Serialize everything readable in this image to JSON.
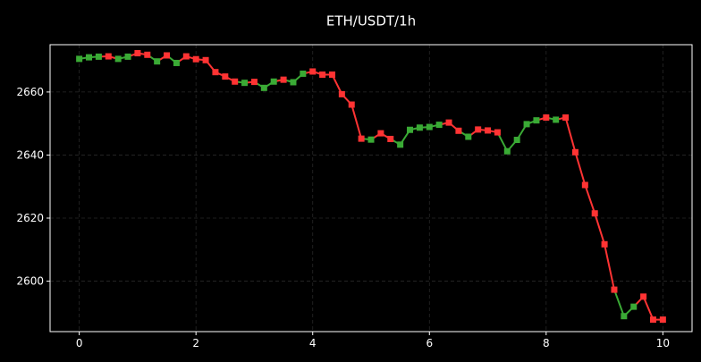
{
  "chart_data": {
    "type": "line",
    "title": "ETH/USDT/1h",
    "xlabel": "",
    "ylabel": "",
    "xlim": [
      -0.5,
      10.5
    ],
    "ylim": [
      2584,
      2675
    ],
    "x_ticks": [
      0,
      2,
      4,
      6,
      8,
      10
    ],
    "x_tick_labels": [
      "0",
      "2",
      "4",
      "6",
      "8",
      "10"
    ],
    "y_ticks": [
      2600,
      2620,
      2640,
      2660
    ],
    "y_tick_labels": [
      "2600",
      "2620",
      "2640",
      "2660"
    ],
    "grid": true,
    "legend": "none",
    "colors": {
      "background": "#000000",
      "axes": "#ffffff",
      "grid": "#444444",
      "up": "#3aaa35",
      "down": "#ff3333"
    },
    "series": [
      {
        "x": [
          0,
          0.1667,
          0.3333,
          0.5,
          0.6667,
          0.8333,
          1.0,
          1.1667,
          1.3333,
          1.5,
          1.6667,
          1.8333,
          2.0,
          2.1667,
          2.3333,
          2.5,
          2.6667,
          2.8333,
          3.0,
          3.1667,
          3.3333,
          3.5,
          3.6667,
          3.8333,
          4.0,
          4.1667,
          4.3333,
          4.5,
          4.6667,
          4.8333,
          5.0,
          5.1667,
          5.3333,
          5.5,
          5.6667,
          5.8333,
          6.0,
          6.1667,
          6.3333,
          6.5,
          6.6667,
          6.8333,
          7.0,
          7.1667,
          7.3333,
          7.5,
          7.6667,
          7.8333,
          8.0,
          8.1667,
          8.3333,
          8.5,
          8.6667,
          8.8333,
          9.0,
          9.1667,
          9.3333,
          9.5,
          9.6667,
          9.8333,
          10.0
        ],
        "y": [
          2670.5,
          2671,
          2671.2,
          2671.3,
          2670.5,
          2671.2,
          2672.3,
          2671.8,
          2669.7,
          2671.6,
          2669.2,
          2671.3,
          2670.4,
          2670.1,
          2666.3,
          2664.9,
          2663.3,
          2662.9,
          2663.2,
          2661.3,
          2663.3,
          2663.9,
          2663.1,
          2665.8,
          2666.5,
          2665.5,
          2665.5,
          2659.3,
          2656,
          2645.2,
          2644.9,
          2646.9,
          2645.1,
          2643.3,
          2648,
          2648.7,
          2648.9,
          2649.6,
          2650.3,
          2647.7,
          2645.8,
          2648.1,
          2647.8,
          2647.2,
          2641.2,
          2644.8,
          2649.8,
          2651,
          2651.9,
          2651.2,
          2651.9,
          2640.9,
          2630.5,
          2621.5,
          2611.7,
          2597.3,
          2588.9,
          2591.9,
          2595.1,
          2587.8,
          2587.8
        ],
        "marker_color": [
          "up",
          "up",
          "up",
          "down",
          "up",
          "up",
          "down",
          "down",
          "up",
          "down",
          "up",
          "down",
          "down",
          "down",
          "down",
          "down",
          "down",
          "up",
          "down",
          "up",
          "up",
          "down",
          "up",
          "up",
          "down",
          "down",
          "down",
          "down",
          "down",
          "down",
          "up",
          "down",
          "down",
          "up",
          "up",
          "up",
          "up",
          "up",
          "down",
          "down",
          "up",
          "down",
          "down",
          "down",
          "up",
          "up",
          "up",
          "up",
          "down",
          "up",
          "down",
          "down",
          "down",
          "down",
          "down",
          "down",
          "up",
          "up",
          "down",
          "down",
          "down"
        ],
        "segment_color": [
          "up",
          "up",
          "down",
          "down",
          "up",
          "down",
          "down",
          "up",
          "down",
          "up",
          "down",
          "down",
          "down",
          "down",
          "down",
          "down",
          "up",
          "down",
          "up",
          "up",
          "down",
          "up",
          "up",
          "down",
          "down",
          "down",
          "down",
          "down",
          "down",
          "up",
          "down",
          "down",
          "up",
          "up",
          "up",
          "up",
          "up",
          "down",
          "down",
          "up",
          "down",
          "down",
          "down",
          "up",
          "up",
          "up",
          "up",
          "down",
          "up",
          "down",
          "down",
          "down",
          "down",
          "down",
          "down",
          "up",
          "up",
          "down",
          "down",
          "down"
        ]
      }
    ]
  }
}
